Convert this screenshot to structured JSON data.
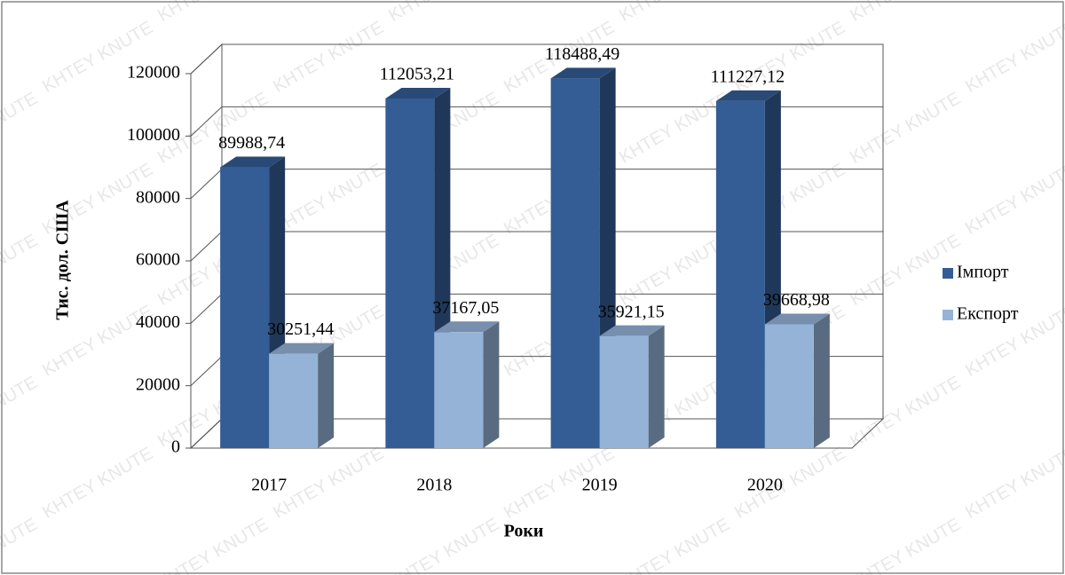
{
  "chart_data": {
    "type": "bar3d",
    "watermark": "KHTEY KNUTE",
    "x_label": "Роки",
    "y_label": "Тис. дол. США",
    "categories": [
      "2017",
      "2018",
      "2019",
      "2020"
    ],
    "series": [
      {
        "name": "Імпорт",
        "color": "#335d94",
        "values": [
          89988.74,
          112053.21,
          118488.49,
          111227.12
        ],
        "value_labels": [
          "89988,74",
          "112053,21",
          "118488,49",
          "111227,12"
        ]
      },
      {
        "name": "Експорт",
        "color": "#95b3d7",
        "values": [
          30251.44,
          37167.05,
          35921.15,
          39668.98
        ],
        "value_labels": [
          "30251,44",
          "37167,05",
          "35921,15",
          "39668,98"
        ]
      }
    ],
    "ylim": [
      0,
      120000
    ],
    "yticks": [
      0,
      20000,
      40000,
      60000,
      80000,
      100000,
      120000
    ],
    "grid": true,
    "legend": "right"
  }
}
